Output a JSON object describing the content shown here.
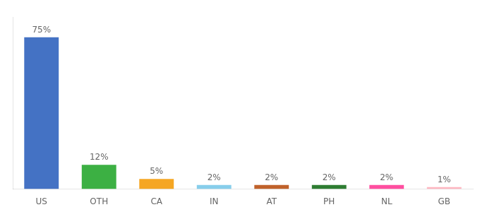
{
  "chart_data": {
    "type": "bar",
    "categories": [
      "US",
      "OTH",
      "CA",
      "IN",
      "AT",
      "PH",
      "NL",
      "GB"
    ],
    "values": [
      75,
      12,
      5,
      2,
      2,
      2,
      2,
      1
    ],
    "value_labels": [
      "75%",
      "12%",
      "5%",
      "2%",
      "2%",
      "2%",
      "2%",
      "1%"
    ],
    "colors": [
      "#4472C4",
      "#3CB043",
      "#F5A623",
      "#87CEEB",
      "#C0622B",
      "#2E7D32",
      "#FF4FA0",
      "#FFB6C1"
    ],
    "ylim": [
      0,
      85
    ],
    "data_labels": true,
    "grid": false,
    "tick_labels": "x"
  }
}
